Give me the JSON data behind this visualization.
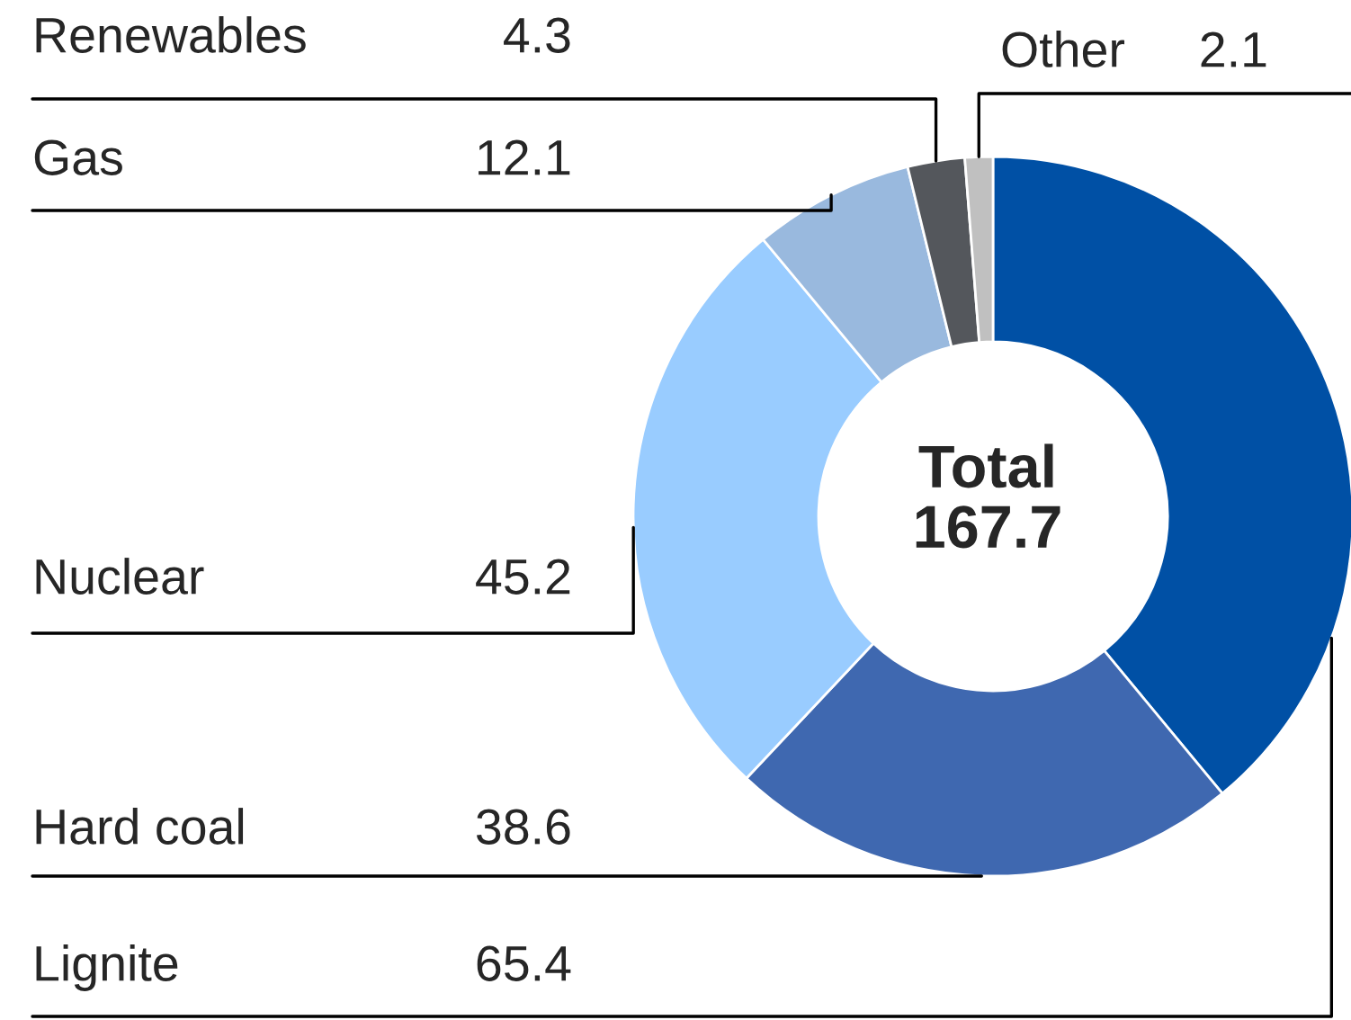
{
  "chart_data": {
    "type": "donut",
    "categories": [
      "Lignite",
      "Hard coal",
      "Nuclear",
      "Gas",
      "Renewables",
      "Other"
    ],
    "values": [
      65.4,
      38.6,
      45.2,
      12.1,
      4.3,
      2.1
    ],
    "colors": [
      "#0050a5",
      "#3f68b0",
      "#99ccff",
      "#99b9de",
      "#54575c",
      "#c0c0c0"
    ],
    "data_labels": true,
    "legend": false,
    "annotations": [
      "Total\n167.7"
    ]
  }
}
